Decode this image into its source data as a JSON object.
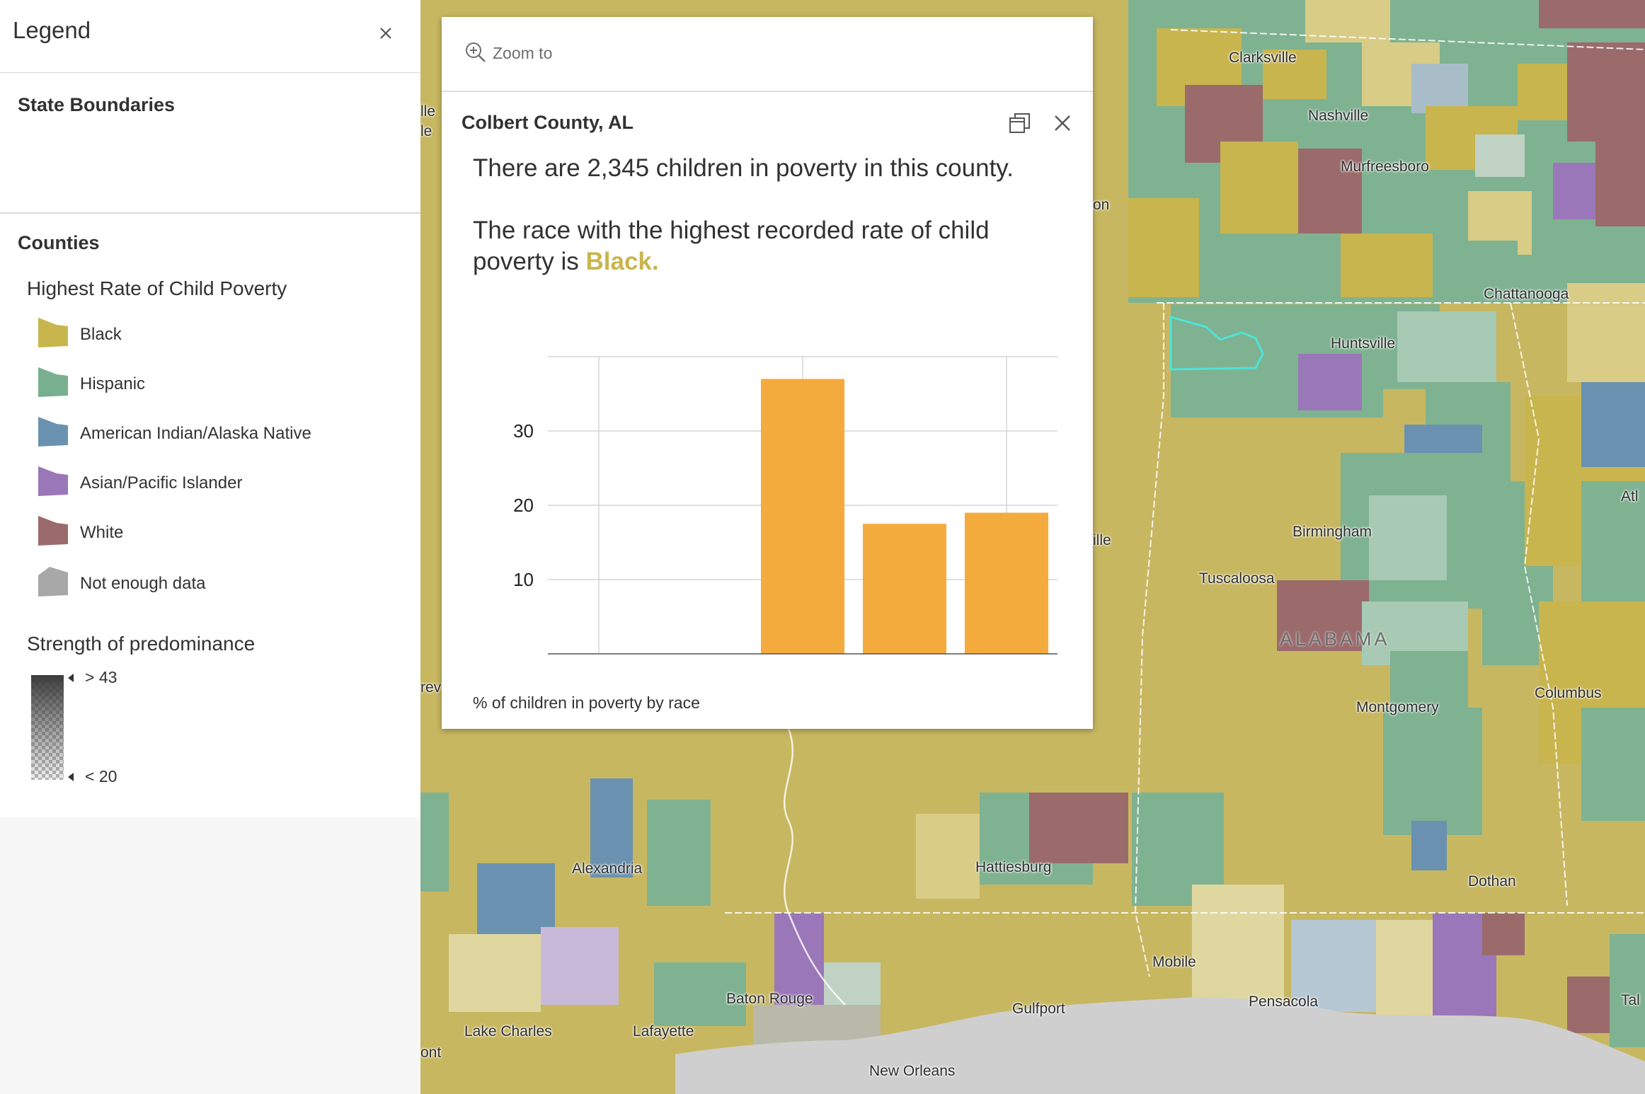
{
  "legend": {
    "title": "Legend",
    "close_icon": "close-icon",
    "layers": {
      "state_boundaries": "State Boundaries",
      "counties": "Counties"
    },
    "field_title": "Highest Rate of Child Poverty",
    "items": [
      {
        "label": "Black",
        "color": "#c9b54d"
      },
      {
        "label": "Hispanic",
        "color": "#78b08f"
      },
      {
        "label": "American Indian/Alaska Native",
        "color": "#6a92b0"
      },
      {
        "label": "Asian/Pacific Islander",
        "color": "#9a77b8"
      },
      {
        "label": "White",
        "color": "#9b6b6c"
      },
      {
        "label": "Not enough data",
        "color": "#a8a8a8"
      }
    ],
    "strength_title": "Strength of predominance",
    "strength_high": "> 43",
    "strength_low": "< 20"
  },
  "map": {
    "cities": [
      "Clarksville",
      "Nashville",
      "Murfreesboro",
      "Chattanooga",
      "Huntsville",
      "Birmingham",
      "Tuscaloosa",
      "Montgomery",
      "Columbus",
      "Dothan",
      "Alexandria",
      "Hattiesburg",
      "Mobile",
      "Pensacola",
      "Baton Rouge",
      "Gulfport",
      "Lake Charles",
      "Lafayette",
      "New Orleans"
    ],
    "clipped_labels": [
      "lle",
      "le",
      "on",
      "ille",
      "rev",
      "ont",
      "Atl",
      "Tal"
    ],
    "state_label": "ALABAMA"
  },
  "popup": {
    "zoom_label": "Zoom to",
    "title": "Colbert County, AL",
    "line1": "There are 2,345 children in poverty in this county.",
    "line2_prefix": "The race with the highest recorded rate of child poverty is ",
    "line2_race": "Black.",
    "caption": "% of children in poverty by race"
  },
  "chart_data": {
    "type": "bar",
    "categories": [
      "",
      "",
      "",
      "",
      ""
    ],
    "values": [
      0,
      0,
      37,
      17.5,
      19
    ],
    "ylim": [
      0,
      40
    ],
    "yticks": [
      10,
      20,
      30
    ],
    "bar_color": "#f4ab3e",
    "grid": true
  }
}
